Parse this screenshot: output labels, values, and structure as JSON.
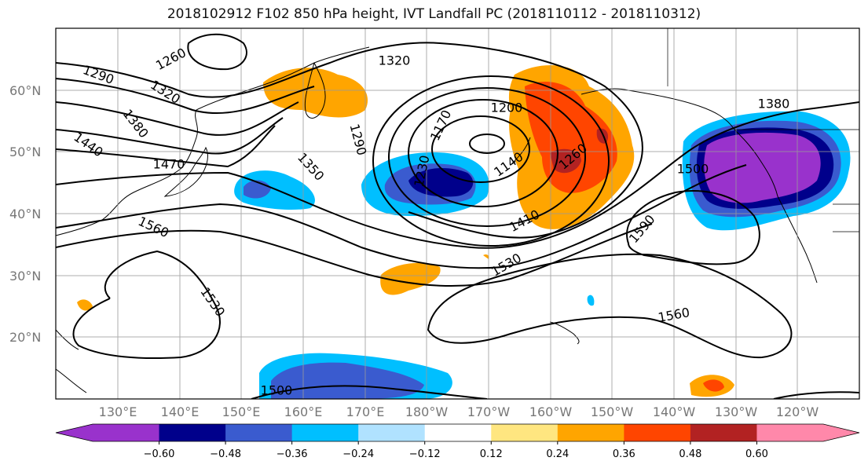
{
  "title": "2018102912 F102 850 hPa height, IVT Landfall PC (2018110112 - 2018110312)",
  "lat_labels": [
    "60°N",
    "50°N",
    "40°N",
    "30°N",
    "20°N"
  ],
  "lon_labels": [
    "130°E",
    "140°E",
    "150°E",
    "160°E",
    "170°E",
    "180°W",
    "170°W",
    "160°W",
    "150°W",
    "140°W",
    "130°W",
    "120°W"
  ],
  "contour_labels": [
    "1290",
    "1260",
    "1320",
    "1380",
    "1320",
    "1440",
    "1470",
    "1350",
    "1290",
    "1200",
    "1170",
    "1230",
    "1140",
    "1260",
    "1380",
    "1500",
    "1560",
    "1410",
    "1590",
    "1530",
    "1530",
    "1560",
    "1500"
  ],
  "colorbar": {
    "tick_labels": [
      "−0.60",
      "−0.48",
      "−0.36",
      "−0.24",
      "−0.12",
      "0.12",
      "0.24",
      "0.36",
      "0.48",
      "0.60"
    ],
    "colors": [
      "#9932cc",
      "#00008b",
      "#3a5bcf",
      "#00bfff",
      "#b0e2ff",
      "#ffffff",
      "#ffe680",
      "#ffa500",
      "#ff4500",
      "#b22222",
      "#ff88aa"
    ]
  }
}
